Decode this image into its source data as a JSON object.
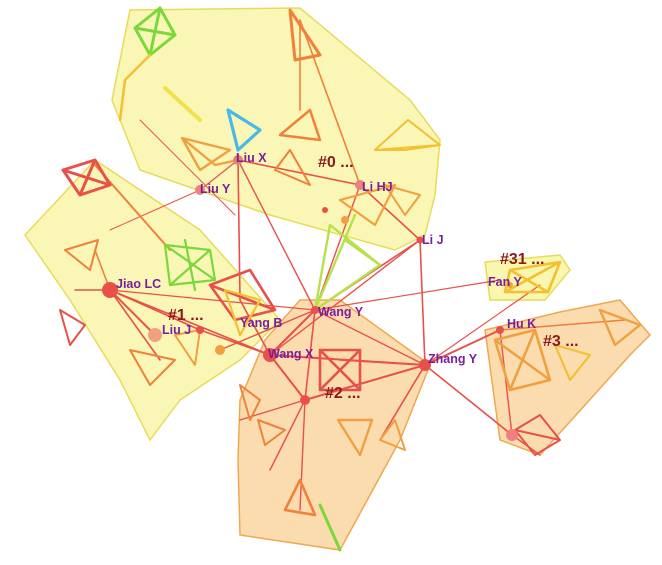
{
  "authors": {
    "liu_x": "Liu X",
    "liu_y": "Liu Y",
    "li_hj": "Li HJ",
    "li_j": "Li J",
    "jiao_lc": "Jiao LC",
    "liu_j": "Liu J",
    "yang_b": "Yang B",
    "wang_y": "Wang Y",
    "wang_x": "Wang X",
    "zhang_y": "Zhang Y",
    "hu_k": "Hu K",
    "fan_y": "Fan Y"
  },
  "clusters": {
    "c0": "#0 ...",
    "c1": "#1 ...",
    "c2": "#2 ...",
    "c3": "#3 ...",
    "c31": "#31 ..."
  },
  "colors": {
    "cluster_yellow": "#f5f07a",
    "cluster_orange": "#f9c47a",
    "edge_red": "#e8504a",
    "edge_orange": "#f0803a",
    "edge_yellow": "#f2c030",
    "edge_green": "#7ad83a",
    "edge_cyan": "#48b8e8",
    "author_text": "#7a1f9a",
    "cluster_text": "#8b1a1a"
  }
}
